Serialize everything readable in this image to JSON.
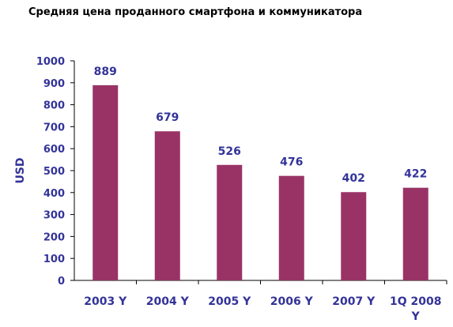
{
  "chart_data": {
    "type": "bar",
    "title": "Средняя цена проданного смартфона и коммуникатора",
    "ylabel": "USD",
    "xlabel": "",
    "categories": [
      "2003 Y",
      "2004 Y",
      "2005 Y",
      "2006 Y",
      "2007 Y",
      "1Q 2008 Y"
    ],
    "values": [
      889,
      679,
      526,
      476,
      402,
      422
    ],
    "data_labels": [
      "889",
      "679",
      "526",
      "476",
      "402",
      "422"
    ],
    "ylim": [
      0,
      1000
    ],
    "yticks": [
      "0",
      "100",
      "200",
      "300",
      "400",
      "500",
      "600",
      "700",
      "800",
      "900",
      "1000"
    ],
    "grid": false,
    "legend": "none",
    "colors": {
      "bar": "#993366",
      "text": "#333399",
      "axis": "#000000"
    }
  }
}
